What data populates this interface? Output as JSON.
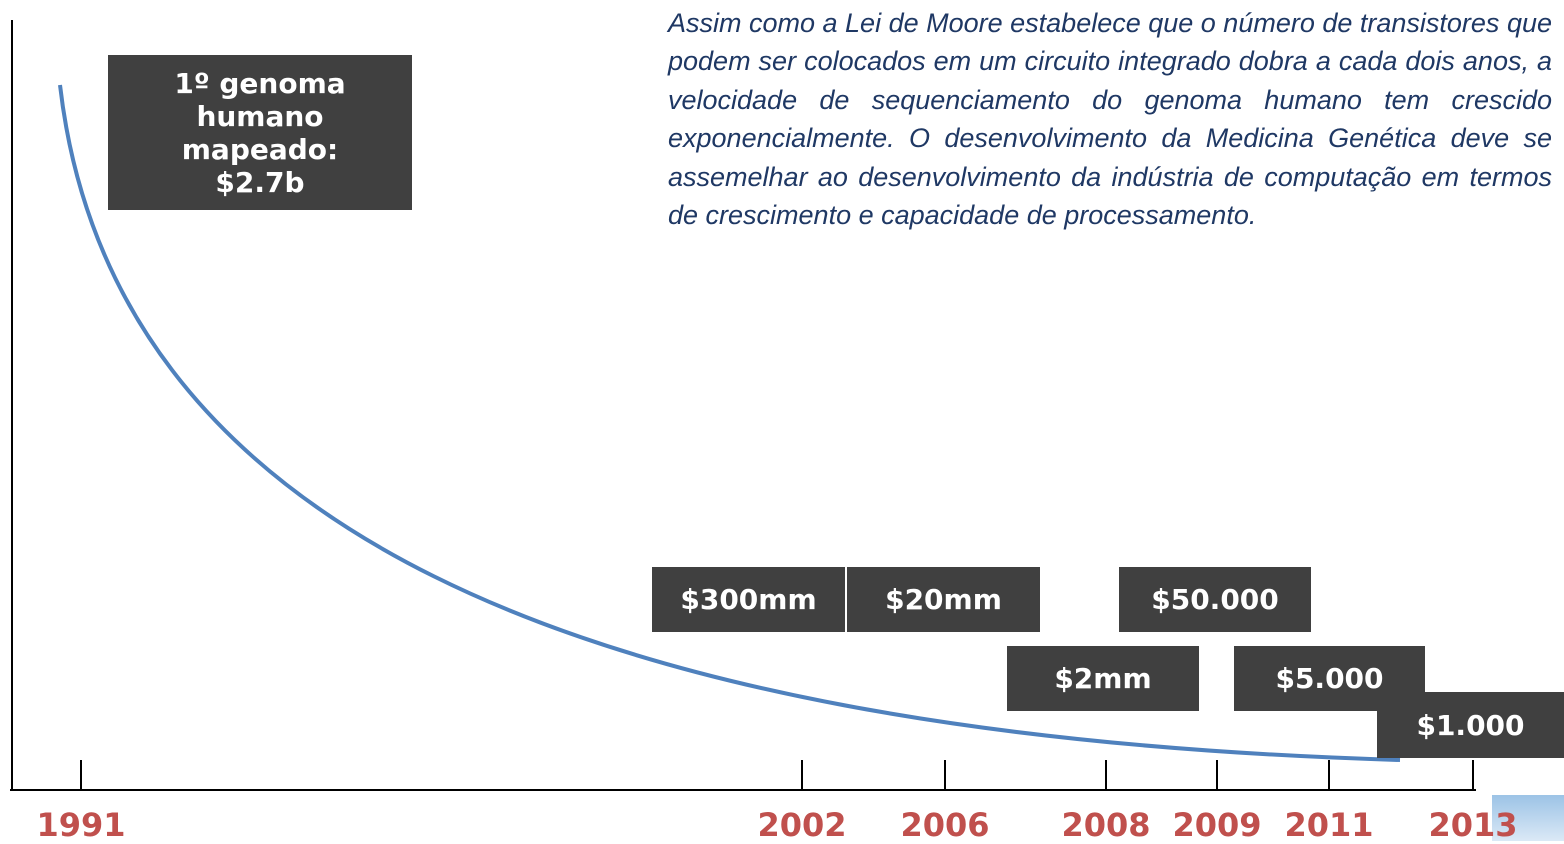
{
  "paragraph": "Assim como a Lei de Moore estabelece que o número de transistores que podem ser colocados em um circuito integrado dobra a cada dois anos, a velocidade de sequenciamento do genoma humano tem crescido exponencialmente. O desenvolvimento da Medicina Genética deve se assemelhar ao desenvolvimento da indústria de computação em termos de crescimento e capacidade de processamento.",
  "boxes": [
    "1º genoma humano mapeado: $2.7b",
    "$300mm",
    "$20mm",
    "$50.000",
    "$2mm",
    "$5.000",
    "$1.000"
  ],
  "years": [
    "1991",
    "2002",
    "2006",
    "2008",
    "2009",
    "2011",
    "2013"
  ]
}
